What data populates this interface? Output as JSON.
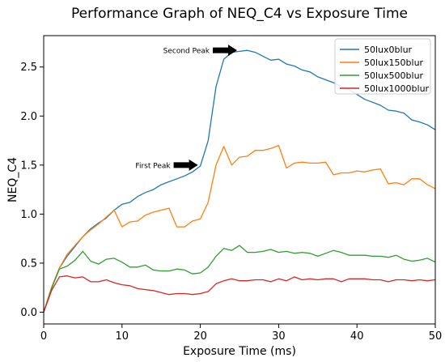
{
  "chart_data": {
    "type": "line",
    "title": "Performance Graph of NEQ_C4 vs Exposure Time",
    "xlabel": "Exposure Time (ms)",
    "ylabel": "NEQ_C4",
    "xlim": [
      0,
      50
    ],
    "ylim": [
      -0.12,
      2.82
    ],
    "xticks": [
      0,
      10,
      20,
      30,
      40,
      50
    ],
    "yticks": [
      0.0,
      0.5,
      1.0,
      1.5,
      2.0,
      2.5
    ],
    "ytick_labels": [
      "0.0",
      "0.5",
      "1.0",
      "1.5",
      "2.0",
      "2.5"
    ],
    "grid": false,
    "legend_position": "top-right",
    "x": [
      0,
      1,
      2,
      3,
      4,
      5,
      6,
      7,
      8,
      9,
      10,
      11,
      12,
      13,
      14,
      15,
      16,
      17,
      18,
      19,
      20,
      21,
      22,
      23,
      24,
      25,
      26,
      27,
      28,
      29,
      30,
      31,
      32,
      33,
      34,
      35,
      36,
      37,
      38,
      39,
      40,
      41,
      42,
      43,
      44,
      45,
      46,
      47,
      48,
      49,
      50
    ],
    "series": [
      {
        "name": "50lux0blur",
        "color": "#1f77b4",
        "values": [
          0.0,
          0.25,
          0.45,
          0.57,
          0.67,
          0.77,
          0.85,
          0.91,
          0.96,
          1.04,
          1.1,
          1.12,
          1.18,
          1.22,
          1.25,
          1.3,
          1.33,
          1.36,
          1.39,
          1.43,
          1.49,
          1.75,
          2.3,
          2.58,
          2.65,
          2.66,
          2.67,
          2.65,
          2.61,
          2.57,
          2.58,
          2.53,
          2.51,
          2.47,
          2.45,
          2.4,
          2.37,
          2.34,
          2.3,
          2.27,
          2.22,
          2.17,
          2.14,
          2.11,
          2.06,
          2.05,
          2.03,
          1.96,
          1.94,
          1.91,
          1.86
        ]
      },
      {
        "name": "50lux150blur",
        "color": "#ff7f0e",
        "values": [
          0.0,
          0.25,
          0.45,
          0.59,
          0.68,
          0.77,
          0.84,
          0.9,
          0.97,
          1.04,
          0.87,
          0.92,
          0.93,
          0.99,
          1.02,
          1.04,
          1.06,
          0.87,
          0.87,
          0.93,
          0.95,
          1.12,
          1.5,
          1.69,
          1.5,
          1.58,
          1.59,
          1.65,
          1.65,
          1.67,
          1.7,
          1.47,
          1.52,
          1.53,
          1.52,
          1.52,
          1.53,
          1.4,
          1.42,
          1.42,
          1.44,
          1.43,
          1.45,
          1.46,
          1.31,
          1.32,
          1.3,
          1.36,
          1.36,
          1.3,
          1.26
        ]
      },
      {
        "name": "50lux500blur",
        "color": "#2ca02c",
        "values": [
          0.0,
          0.24,
          0.44,
          0.47,
          0.53,
          0.62,
          0.52,
          0.49,
          0.54,
          0.55,
          0.51,
          0.46,
          0.46,
          0.48,
          0.43,
          0.42,
          0.42,
          0.44,
          0.43,
          0.39,
          0.4,
          0.46,
          0.57,
          0.65,
          0.63,
          0.68,
          0.61,
          0.61,
          0.62,
          0.64,
          0.61,
          0.62,
          0.6,
          0.61,
          0.6,
          0.57,
          0.6,
          0.63,
          0.61,
          0.58,
          0.58,
          0.58,
          0.57,
          0.57,
          0.56,
          0.58,
          0.54,
          0.52,
          0.53,
          0.55,
          0.51
        ]
      },
      {
        "name": "50lux1000blur",
        "color": "#d62728",
        "values": [
          0.0,
          0.22,
          0.36,
          0.37,
          0.35,
          0.36,
          0.31,
          0.31,
          0.33,
          0.3,
          0.28,
          0.27,
          0.24,
          0.23,
          0.22,
          0.2,
          0.18,
          0.19,
          0.19,
          0.18,
          0.19,
          0.21,
          0.29,
          0.32,
          0.34,
          0.32,
          0.32,
          0.33,
          0.33,
          0.31,
          0.34,
          0.32,
          0.36,
          0.33,
          0.34,
          0.33,
          0.34,
          0.34,
          0.31,
          0.34,
          0.34,
          0.34,
          0.33,
          0.33,
          0.31,
          0.33,
          0.33,
          0.32,
          0.33,
          0.32,
          0.33
        ]
      }
    ],
    "annotations": [
      {
        "text": "First Peak",
        "x": 20,
        "y": 1.5
      },
      {
        "text": "Second Peak",
        "x": 25,
        "y": 2.67
      }
    ]
  }
}
